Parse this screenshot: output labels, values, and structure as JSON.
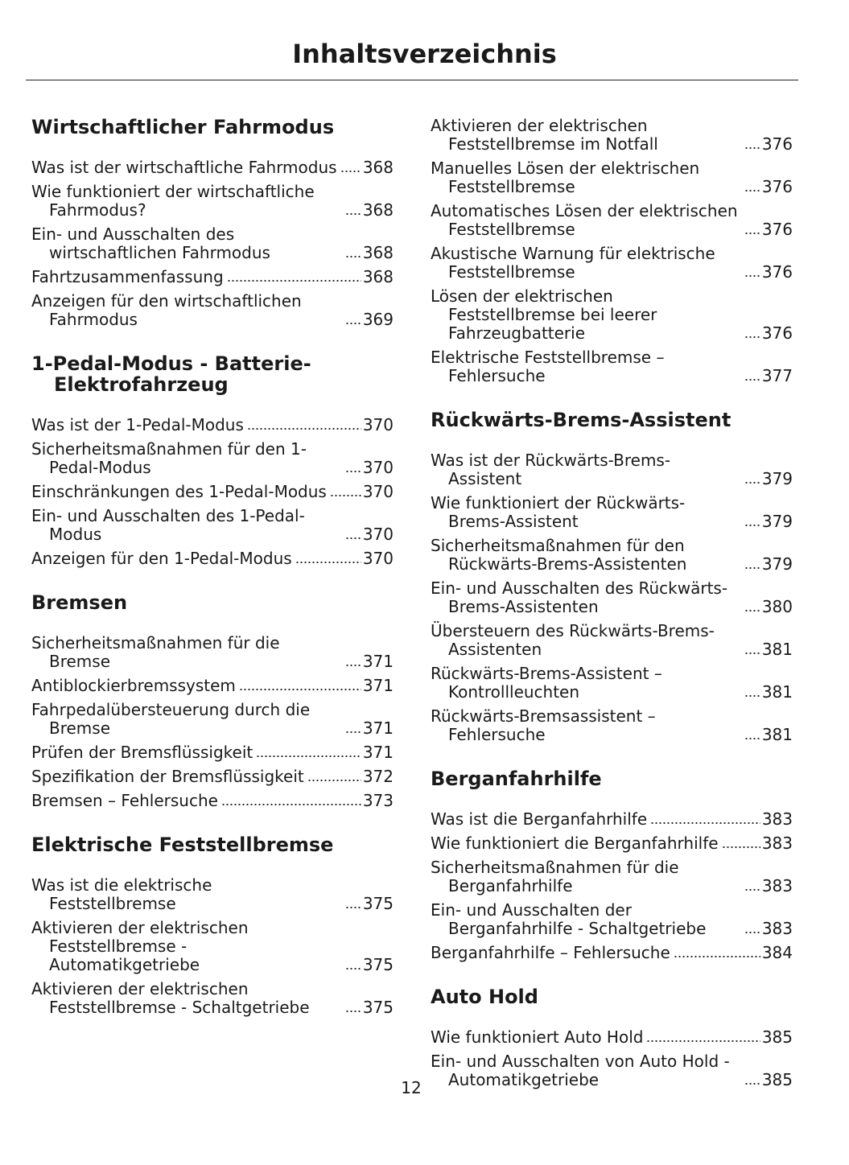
{
  "header": {
    "title": "Inhaltsverzeichnis"
  },
  "columns": [
    {
      "sections": [
        {
          "heading": "Wirtschaftlicher Fahrmodus",
          "entries": [
            {
              "label": "Was ist der wirtschaftliche Fahrmodus",
              "page": 368
            },
            {
              "label": "Wie funktioniert der wirtschaftliche Fahrmodus?",
              "page": 368
            },
            {
              "label": "Ein- und Ausschalten des wirtschaftlichen Fahrmodus",
              "page": 368
            },
            {
              "label": "Fahrtzusammenfassung",
              "page": 368
            },
            {
              "label": "Anzeigen für den wirtschaftlichen Fahrmodus",
              "page": 369
            }
          ]
        },
        {
          "heading": "1-Pedal-Modus - Batterie-Elektrofahrzeug",
          "entries": [
            {
              "label": "Was ist der 1-Pedal-Modus",
              "page": 370
            },
            {
              "label": "Sicherheitsmaßnahmen für den 1-Pedal-Modus",
              "page": 370
            },
            {
              "label": "Einschränkungen des 1-Pedal-Modus",
              "page": 370
            },
            {
              "label": "Ein- und Ausschalten des 1-Pedal-Modus",
              "page": 370
            },
            {
              "label": "Anzeigen für den 1-Pedal-Modus",
              "page": 370
            }
          ]
        },
        {
          "heading": "Bremsen",
          "entries": [
            {
              "label": "Sicherheitsmaßnahmen für die Bremse",
              "page": 371
            },
            {
              "label": "Antiblockierbremssystem",
              "page": 371
            },
            {
              "label": "Fahrpedalübersteuerung durch die Bremse",
              "page": 371
            },
            {
              "label": "Prüfen der Bremsflüssigkeit",
              "page": 371
            },
            {
              "label": "Spezifikation der Bremsflüssigkeit",
              "page": 372
            },
            {
              "label": "Bremsen – Fehlersuche",
              "page": 373
            }
          ]
        },
        {
          "heading": "Elektrische Feststellbremse",
          "entries": [
            {
              "label": "Was ist die elektrische Feststellbremse",
              "page": 375
            },
            {
              "label": "Aktivieren der elektrischen Feststellbremse - Automatikgetriebe",
              "page": 375
            },
            {
              "label": "Aktivieren der elektrischen Feststellbremse - Schaltgetriebe",
              "page": 375
            }
          ]
        }
      ]
    },
    {
      "sections": [
        {
          "entries": [
            {
              "label": "Aktivieren der elektrischen Feststellbremse im Notfall",
              "page": 376
            },
            {
              "label": "Manuelles Lösen der elektrischen Feststellbremse",
              "page": 376
            },
            {
              "label": "Automatisches Lösen der elektrischen Feststellbremse",
              "page": 376
            },
            {
              "label": "Akustische Warnung für elektrische Feststellbremse",
              "page": 376
            },
            {
              "label": "Lösen der elektrischen Feststellbremse bei leerer Fahrzeugbatterie",
              "page": 376
            },
            {
              "label": "Elektrische Feststellbremse – Fehlersuche",
              "page": 377
            }
          ]
        },
        {
          "heading": "Rückwärts-Brems-Assistent",
          "entries": [
            {
              "label": "Was ist der Rückwärts-Brems-Assistent",
              "page": 379
            },
            {
              "label": "Wie funktioniert der Rückwärts-Brems-Assistent",
              "page": 379
            },
            {
              "label": "Sicherheitsmaßnahmen für den Rückwärts-Brems-Assistenten",
              "page": 379
            },
            {
              "label": "Ein- und Ausschalten des Rückwärts-Brems-Assistenten",
              "page": 380
            },
            {
              "label": "Übersteuern des Rückwärts-Brems-Assistenten",
              "page": 381
            },
            {
              "label": "Rückwärts-Brems-Assistent – Kontrollleuchten",
              "page": 381
            },
            {
              "label": "Rückwärts-Bremsassistent – Fehlersuche",
              "page": 381
            }
          ]
        },
        {
          "heading": "Berganfahrhilfe",
          "entries": [
            {
              "label": "Was ist die Berganfahrhilfe",
              "page": 383
            },
            {
              "label": "Wie funktioniert die Berganfahrhilfe",
              "page": 383
            },
            {
              "label": "Sicherheitsmaßnahmen für die Berganfahrhilfe",
              "page": 383
            },
            {
              "label": "Ein- und Ausschalten der Berganfahrhilfe - Schaltgetriebe",
              "page": 383
            },
            {
              "label": "Berganfahrhilfe – Fehlersuche",
              "page": 384
            }
          ]
        },
        {
          "heading": "Auto Hold",
          "entries": [
            {
              "label": "Wie funktioniert Auto Hold",
              "page": 385
            },
            {
              "label": "Ein- und Ausschalten von Auto Hold - Automatikgetriebe",
              "page": 385
            }
          ]
        }
      ]
    }
  ],
  "footer": {
    "page_number": 12
  }
}
